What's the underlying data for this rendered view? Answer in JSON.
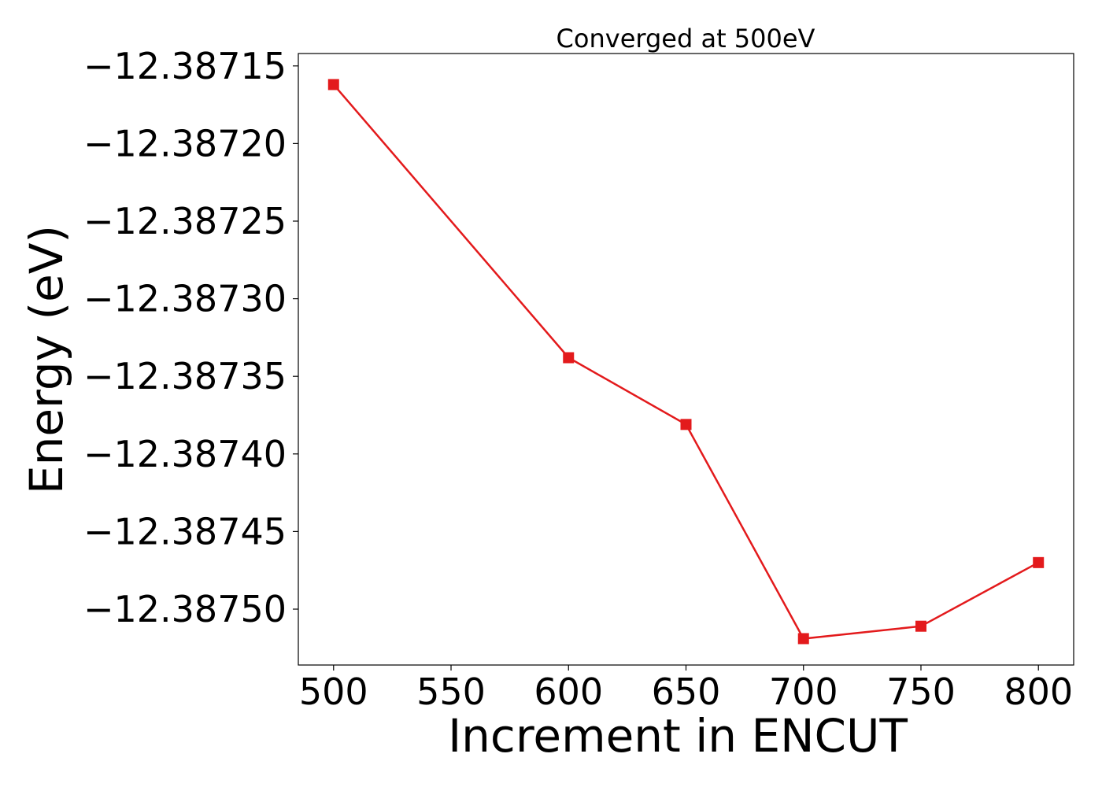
{
  "chart_data": {
    "type": "line",
    "title": "Converged at 500eV",
    "xlabel": "Increment in ENCUT",
    "ylabel": "Energy (eV)",
    "x": [
      500,
      600,
      650,
      700,
      750,
      800
    ],
    "series": [
      {
        "values": [
          -12.387162,
          -12.387338,
          -12.387381,
          -12.387519,
          -12.387511,
          -12.38747
        ]
      }
    ],
    "xlim": [
      485,
      815
    ],
    "ylim": [
      -12.387536,
      -12.387142
    ],
    "xticks": [
      500,
      550,
      600,
      650,
      700,
      750,
      800
    ],
    "xtick_labels": [
      "500",
      "550",
      "600",
      "650",
      "700",
      "750",
      "800"
    ],
    "yticks": [
      -12.38715,
      -12.3872,
      -12.38725,
      -12.3873,
      -12.38735,
      -12.3874,
      -12.38745,
      -12.3875
    ],
    "ytick_labels": [
      "−12.38715",
      "−12.38720",
      "−12.38725",
      "−12.38730",
      "−12.38735",
      "−12.38740",
      "−12.38745",
      "−12.38750"
    ],
    "grid": false,
    "legend": "none",
    "line_color": "#e31a1c",
    "marker": "square"
  }
}
